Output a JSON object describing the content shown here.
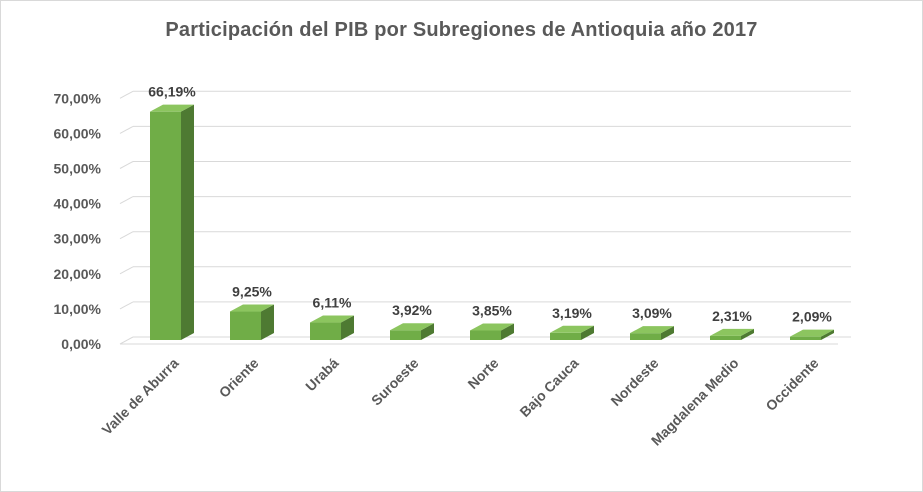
{
  "chart_data": {
    "type": "bar",
    "title": "Participación del PIB por Subregiones de Antioquia año 2017",
    "xlabel": "",
    "ylabel": "",
    "categories": [
      "Valle de Aburra",
      "Oriente",
      "Urabá",
      "Suroeste",
      "Norte",
      "Bajo Cauca",
      "Nordeste",
      "Magdalena Medio",
      "Occidente"
    ],
    "values": [
      66.19,
      9.25,
      6.11,
      3.92,
      3.85,
      3.19,
      3.09,
      2.31,
      2.09
    ],
    "data_labels": [
      "66,19%",
      "9,25%",
      "6,11%",
      "3,92%",
      "3,85%",
      "3,19%",
      "3,09%",
      "2,31%",
      "2,09%"
    ],
    "y_ticks": [
      0,
      10,
      20,
      30,
      40,
      50,
      60,
      70
    ],
    "y_tick_labels": [
      "0,00%",
      "10,00%",
      "20,00%",
      "30,00%",
      "40,00%",
      "50,00%",
      "60,00%",
      "70,00%"
    ],
    "ylim": [
      0,
      70
    ],
    "grid": true,
    "legend": "none",
    "style": "3d-column",
    "colors": {
      "bar_front": "#70ad47",
      "bar_top": "#8cc55f",
      "bar_side": "#4e7a32",
      "grid": "#d9d9d9",
      "text": "#595959"
    }
  }
}
